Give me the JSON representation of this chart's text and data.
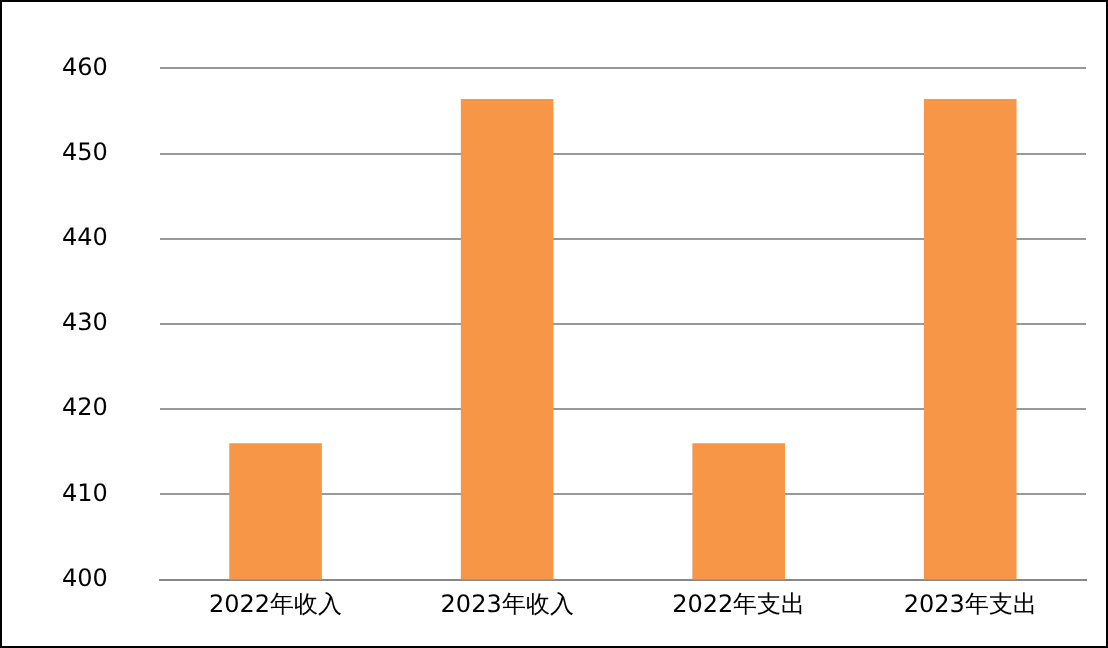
{
  "chart_data": {
    "type": "bar",
    "categories": [
      "2022年收入",
      "2023年收入",
      "2022年支出",
      "2023年支出"
    ],
    "values": [
      416,
      456.4,
      416,
      456.4
    ],
    "color": "#f79646",
    "ylim": [
      400,
      460
    ],
    "yticks": [
      400,
      410,
      420,
      430,
      440,
      450,
      460
    ],
    "grid": "y",
    "legend": false
  }
}
